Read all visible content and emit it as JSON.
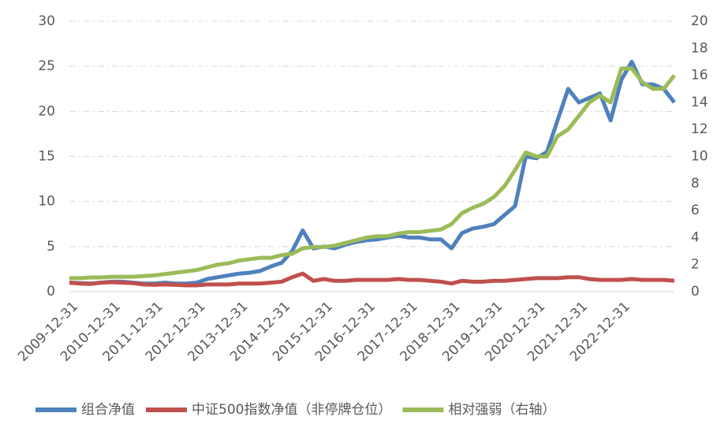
{
  "chart_data": {
    "type": "line",
    "x": [
      "2009-12-31",
      "2010-03-31",
      "2010-06-30",
      "2010-09-30",
      "2010-12-31",
      "2011-03-31",
      "2011-06-30",
      "2011-09-30",
      "2011-12-31",
      "2012-03-31",
      "2012-06-30",
      "2012-09-30",
      "2012-12-31",
      "2013-03-31",
      "2013-06-30",
      "2013-09-30",
      "2013-12-31",
      "2014-03-31",
      "2014-06-30",
      "2014-09-30",
      "2014-12-31",
      "2015-03-31",
      "2015-06-30",
      "2015-09-30",
      "2015-12-31",
      "2016-03-31",
      "2016-06-30",
      "2016-09-30",
      "2016-12-31",
      "2017-03-31",
      "2017-06-30",
      "2017-09-30",
      "2017-12-31",
      "2018-03-31",
      "2018-06-30",
      "2018-09-30",
      "2018-12-31",
      "2019-03-31",
      "2019-06-30",
      "2019-09-30",
      "2019-12-31",
      "2020-03-31",
      "2020-06-30",
      "2020-09-30",
      "2020-12-31",
      "2021-03-31",
      "2021-06-30",
      "2021-09-30",
      "2021-12-31",
      "2022-03-31",
      "2022-06-30",
      "2022-09-30",
      "2022-12-31",
      "2023-03-31",
      "2023-06-30",
      "2023-09-30",
      "2023-12-31",
      "2024-03-31"
    ],
    "series": [
      {
        "name": "组合净值",
        "color": "#4f81bd",
        "values": [
          1.0,
          0.95,
          0.9,
          1.0,
          1.1,
          1.1,
          1.0,
          0.9,
          0.9,
          1.0,
          0.9,
          0.9,
          1.0,
          1.4,
          1.6,
          1.8,
          2.0,
          2.1,
          2.3,
          2.8,
          3.2,
          4.5,
          6.8,
          4.8,
          5.0,
          4.8,
          5.2,
          5.5,
          5.7,
          5.8,
          6.0,
          6.2,
          6.0,
          6.0,
          5.8,
          5.8,
          4.8,
          6.5,
          7.0,
          7.2,
          7.5,
          8.5,
          9.5,
          15.0,
          14.8,
          15.5,
          19.0,
          22.5,
          21.0,
          21.5,
          22.0,
          19.0,
          23.5,
          25.5,
          23.0,
          23.0,
          22.5,
          21.0
        ]
      },
      {
        "name": "中证500指数净值（非停牌仓位）",
        "color": "#c0504d",
        "values": [
          1.0,
          0.9,
          0.85,
          1.0,
          1.05,
          1.0,
          0.95,
          0.8,
          0.75,
          0.8,
          0.75,
          0.7,
          0.7,
          0.8,
          0.8,
          0.8,
          0.9,
          0.9,
          0.9,
          1.0,
          1.1,
          1.6,
          2.0,
          1.2,
          1.4,
          1.2,
          1.2,
          1.3,
          1.3,
          1.3,
          1.3,
          1.4,
          1.3,
          1.3,
          1.2,
          1.1,
          0.9,
          1.2,
          1.1,
          1.1,
          1.2,
          1.2,
          1.3,
          1.4,
          1.5,
          1.5,
          1.5,
          1.6,
          1.6,
          1.4,
          1.3,
          1.3,
          1.3,
          1.4,
          1.3,
          1.3,
          1.3,
          1.2
        ]
      },
      {
        "name": "相对强弱（右轴）",
        "color": "#9bbb59",
        "axis": "y2",
        "values": [
          1.0,
          1.0,
          1.05,
          1.05,
          1.1,
          1.1,
          1.1,
          1.15,
          1.2,
          1.3,
          1.4,
          1.5,
          1.6,
          1.8,
          2.0,
          2.1,
          2.3,
          2.4,
          2.5,
          2.5,
          2.7,
          2.8,
          3.2,
          3.3,
          3.3,
          3.4,
          3.6,
          3.8,
          4.0,
          4.1,
          4.1,
          4.3,
          4.4,
          4.4,
          4.5,
          4.6,
          5.0,
          5.8,
          6.2,
          6.5,
          7.0,
          7.8,
          9.0,
          10.3,
          10.0,
          10.0,
          11.5,
          12.0,
          13.0,
          14.0,
          14.5,
          14.0,
          16.5,
          16.5,
          15.5,
          15.0,
          15.0,
          16.0
        ]
      }
    ],
    "xlim": [
      "2009-12-31",
      "2024-03-31"
    ],
    "xticks": [
      "2009-12-31",
      "2010-12-31",
      "2011-12-31",
      "2012-12-31",
      "2013-12-31",
      "2014-12-31",
      "2015-12-31",
      "2016-12-31",
      "2017-12-31",
      "2018-12-31",
      "2019-12-31",
      "2020-12-31",
      "2021-12-31",
      "2022-12-31"
    ],
    "ylim": [
      0,
      30
    ],
    "yticks": [
      0,
      5,
      10,
      15,
      20,
      25,
      30
    ],
    "y2lim": [
      0,
      20
    ],
    "y2ticks": [
      0,
      2,
      4,
      6,
      8,
      10,
      12,
      14,
      16,
      18,
      20
    ],
    "grid": true,
    "legend": "bottom"
  }
}
